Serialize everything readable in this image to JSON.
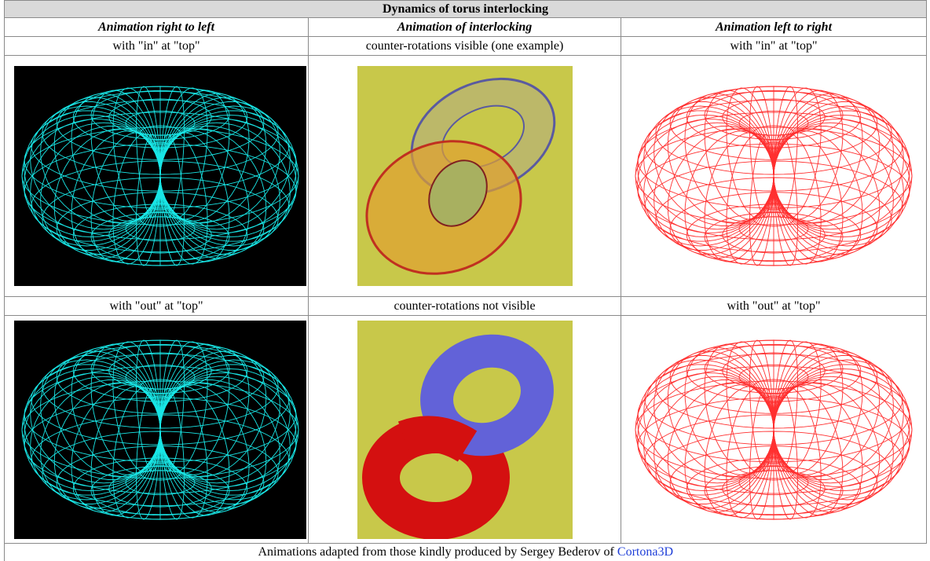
{
  "header": {
    "title": "Dynamics of torus interlocking"
  },
  "table": {
    "columns": [
      "Animation right to left",
      "Animation of interlocking",
      "Animation left to right"
    ],
    "rows": [
      [
        "with \"in\" at \"top\"",
        "counter-rotations visible (one example)",
        "with \"in\" at \"top\""
      ],
      [
        "with \"out\" at \"top\"",
        "counter-rotations not visible",
        "with \"out\" at \"top\""
      ]
    ]
  },
  "footer": {
    "text": "Animations adapted from those kindly produced by Sergey Bederov of",
    "link": "Cortona3D"
  }
}
